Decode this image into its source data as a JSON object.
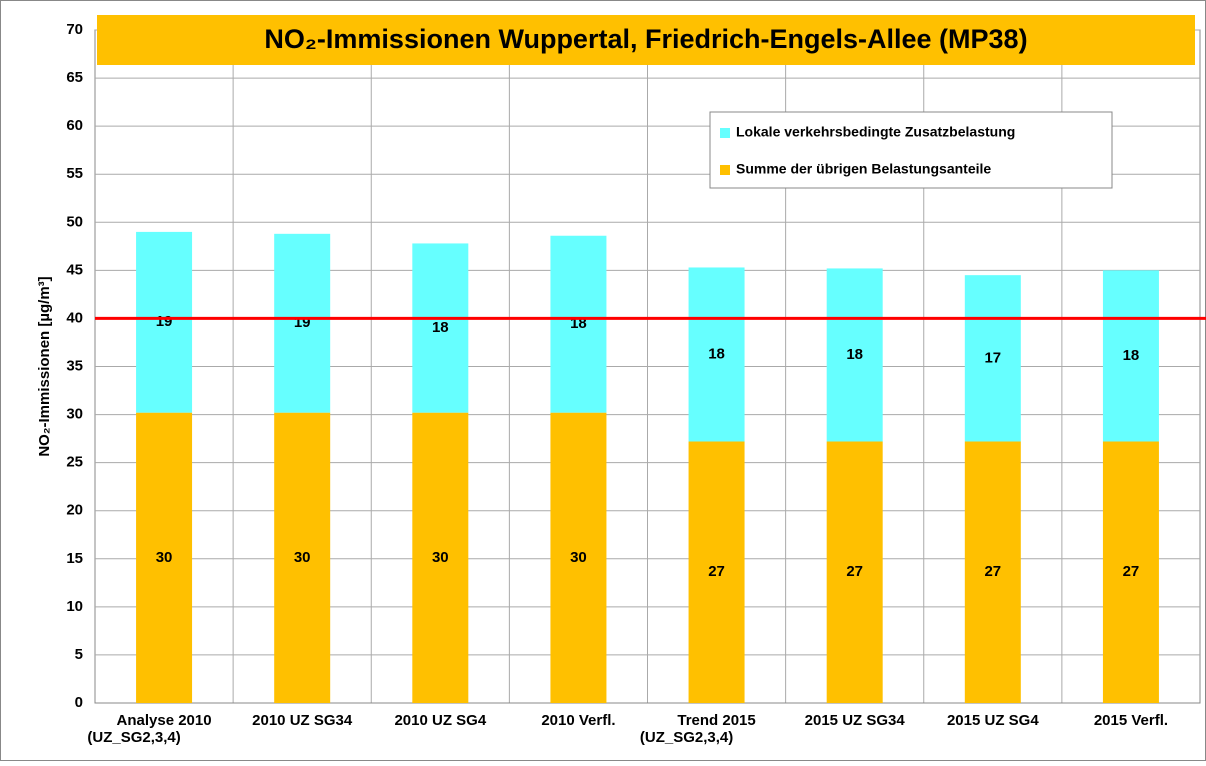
{
  "chart_data": {
    "type": "stacked_bar",
    "title": "NO₂-Immissionen Wuppertal, Friedrich-Engels-Allee (MP38)",
    "y_label": "NO₂-Immissionen [µg/m³]",
    "categories": [
      "Analyse 2010\n(UZ_SG2,3,4)",
      "2010 UZ SG34",
      "2010 UZ SG4",
      "2010 Verfl.",
      "Trend 2015\n(UZ_SG2,3,4)",
      "2015 UZ SG34",
      "2015 UZ SG4",
      "2015 Verfl."
    ],
    "series": [
      {
        "name": "Summe der übrigen Belastungsanteile",
        "color": "#ffc000",
        "values": [
          30.2,
          30.2,
          30.2,
          30.2,
          27.2,
          27.2,
          27.2,
          27.2
        ],
        "value_labels": [
          "30",
          "30",
          "30",
          "30",
          "27",
          "27",
          "27",
          "27"
        ]
      },
      {
        "name": "Lokale verkehrsbedingte Zusatzbelastung",
        "color": "#66ffff",
        "values": [
          18.8,
          18.6,
          17.6,
          18.4,
          18.1,
          18.0,
          17.3,
          17.8
        ],
        "value_labels": [
          "19",
          "19",
          "18",
          "18",
          "18",
          "18",
          "17",
          "18"
        ]
      }
    ],
    "ylim": [
      0,
      70
    ],
    "yticks": [
      0,
      5,
      10,
      15,
      20,
      25,
      30,
      35,
      40,
      45,
      50,
      55,
      60,
      65,
      70
    ],
    "grid": true,
    "legend": "upper right",
    "limit_line": {
      "value": 40,
      "color": "#ff0000"
    }
  }
}
